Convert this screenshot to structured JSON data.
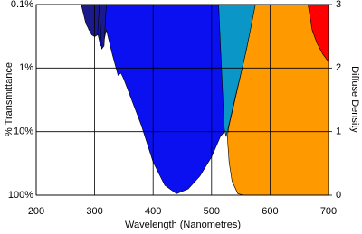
{
  "chart_data": {
    "type": "area",
    "xlabel": "Wavelength (Nanometres)",
    "ylabel": "% Transmittance",
    "y2label": "Diffuse Density",
    "xlim": [
      200,
      700
    ],
    "xticks": [
      200,
      300,
      400,
      500,
      600,
      700
    ],
    "ylim": [
      100,
      0.1
    ],
    "yscale": "log",
    "yticks": [
      {
        "value": 0.1,
        "label": "0.1%"
      },
      {
        "value": 1,
        "label": "1%"
      },
      {
        "value": 10,
        "label": "10%"
      },
      {
        "value": 100,
        "label": "100%"
      }
    ],
    "y2lim": [
      0,
      3
    ],
    "y2ticks": [
      0,
      1,
      2,
      3
    ],
    "grid": true,
    "series": [
      {
        "color": "#0b96c8",
        "x": [
          512,
          520,
          525,
          540,
          555,
          565,
          575
        ],
        "values": [
          0.1,
          8,
          12,
          3,
          0.8,
          0.3,
          0.1
        ]
      },
      {
        "color": "#ff9900",
        "x": [
          575,
          560,
          545,
          530,
          527,
          530,
          535,
          545,
          555,
          700
        ],
        "values": [
          0.1,
          0.5,
          2,
          8,
          12,
          30,
          60,
          95,
          100,
          100
        ]
      },
      {
        "color": "#0a10f0",
        "x": [
          280,
          290,
          300,
          305,
          310,
          315,
          320,
          330,
          340,
          345,
          350,
          380,
          400,
          420,
          440,
          460,
          480,
          500,
          515,
          522,
          512
        ],
        "values": [
          0.1,
          0.25,
          0.3,
          0.28,
          0.45,
          0.4,
          0.25,
          0.6,
          1.3,
          1.2,
          1.5,
          8,
          30,
          70,
          95,
          80,
          50,
          25,
          12,
          10,
          0.1
        ]
      },
      {
        "color": "#1a1a8c",
        "x": [
          277,
          285,
          295,
          300,
          305,
          308,
          312,
          316,
          320
        ],
        "values": [
          0.1,
          0.2,
          0.3,
          0.32,
          0.3,
          0.1,
          0.5,
          0.45,
          0.1
        ]
      },
      {
        "color": "#ff0000",
        "x": [
          665,
          672,
          680,
          690,
          700
        ],
        "values": [
          0.1,
          0.25,
          0.4,
          0.6,
          0.8
        ]
      }
    ]
  }
}
